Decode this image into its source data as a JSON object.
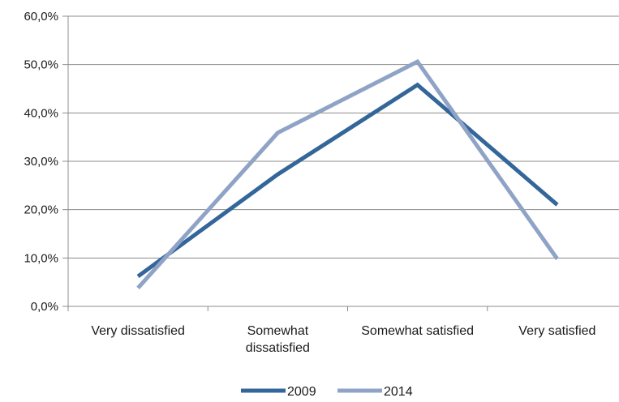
{
  "chart_data": {
    "type": "line",
    "title": "",
    "xlabel": "",
    "ylabel": "",
    "categories": [
      [
        "Very dissatisfied"
      ],
      [
        "Somewhat",
        "dissatisfied"
      ],
      [
        "Somewhat satisfied"
      ],
      [
        "Very satisfied"
      ]
    ],
    "y_ticks": [
      "0,0%",
      "10,0%",
      "20,0%",
      "30,0%",
      "40,0%",
      "50,0%",
      "60,0%"
    ],
    "ylim": [
      0,
      60
    ],
    "grid": true,
    "legend_position": "bottom",
    "series": [
      {
        "name": "2009",
        "values": [
          6.2,
          27.3,
          45.8,
          21.0
        ],
        "color": "#336699"
      },
      {
        "name": "2014",
        "values": [
          3.8,
          35.9,
          50.6,
          9.8
        ],
        "color": "#8FA3C7"
      }
    ]
  }
}
